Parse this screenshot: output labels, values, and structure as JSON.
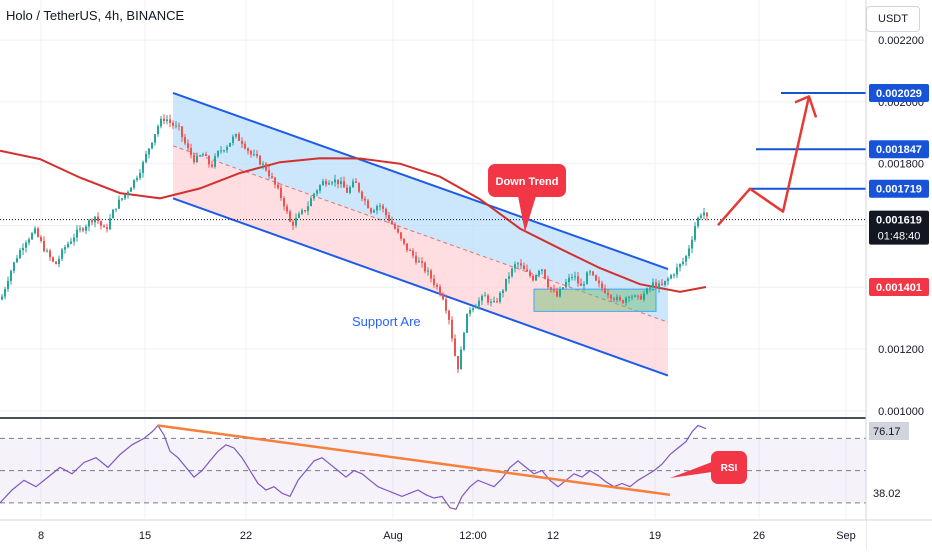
{
  "header": {
    "symbol": "Holo / TetherUS, 4h, BINANCE",
    "currency_button": "USDT"
  },
  "annotations": {
    "down_trend": "Down Trend",
    "support": "Support Are",
    "rsi": "RSI"
  },
  "colors": {
    "up_candle": "#26a69a",
    "down_candle": "#ef5350",
    "channel_line": "#1e5be6",
    "moving_average": "#d32f2f",
    "level_line": "#1753d6",
    "arrow": "#e53935",
    "rsi_line": "#7e57c2",
    "rsi_trend": "#f57f3b",
    "support_box": "#66bb6a",
    "channel_upper_fill": "#bbdefb",
    "channel_lower_fill": "#ffcdd2"
  },
  "chart_data": [
    {
      "type": "candlestick",
      "y_axis_ticks": [
        "0.002200",
        "0.002000",
        "0.001800",
        "0.001600",
        "0.001400",
        "0.001200",
        "0.001000"
      ],
      "ylim": [
        0.00098,
        0.00233
      ],
      "x_axis_ticks": [
        "8",
        "15",
        "22",
        "Aug",
        "12:00",
        "12",
        "19",
        "26",
        "Sep"
      ],
      "current_price": "0.001619",
      "countdown": "01:48:40",
      "price_labels": [
        {
          "value": "0.002029",
          "style": "blue"
        },
        {
          "value": "0.001847",
          "style": "blue"
        },
        {
          "value": "0.001719",
          "style": "blue"
        },
        {
          "value": "0.001401",
          "style": "red"
        }
      ],
      "price_path": [
        [
          0,
          0.00136
        ],
        [
          8,
          0.00144
        ],
        [
          16,
          0.0015
        ],
        [
          24,
          0.00155
        ],
        [
          34,
          0.00158
        ],
        [
          44,
          0.00152
        ],
        [
          54,
          0.00147
        ],
        [
          64,
          0.00153
        ],
        [
          74,
          0.00157
        ],
        [
          84,
          0.0016
        ],
        [
          94,
          0.00163
        ],
        [
          104,
          0.00158
        ],
        [
          114,
          0.00166
        ],
        [
          124,
          0.0017
        ],
        [
          134,
          0.00175
        ],
        [
          142,
          0.0018
        ],
        [
          150,
          0.00187
        ],
        [
          158,
          0.00193
        ],
        [
          164,
          0.00195
        ],
        [
          170,
          0.00193
        ],
        [
          178,
          0.00191
        ],
        [
          186,
          0.00185
        ],
        [
          194,
          0.00181
        ],
        [
          202,
          0.00183
        ],
        [
          210,
          0.00179
        ],
        [
          218,
          0.00184
        ],
        [
          226,
          0.00186
        ],
        [
          234,
          0.00189
        ],
        [
          242,
          0.00187
        ],
        [
          250,
          0.00183
        ],
        [
          258,
          0.00181
        ],
        [
          266,
          0.00178
        ],
        [
          274,
          0.00173
        ],
        [
          282,
          0.00168
        ],
        [
          290,
          0.0016
        ],
        [
          298,
          0.00163
        ],
        [
          306,
          0.00166
        ],
        [
          314,
          0.00171
        ],
        [
          322,
          0.00174
        ],
        [
          330,
          0.00175
        ],
        [
          338,
          0.00174
        ],
        [
          346,
          0.00171
        ],
        [
          354,
          0.00174
        ],
        [
          362,
          0.00169
        ],
        [
          370,
          0.00165
        ],
        [
          378,
          0.00167
        ],
        [
          386,
          0.00163
        ],
        [
          394,
          0.00159
        ],
        [
          402,
          0.00154
        ],
        [
          410,
          0.00151
        ],
        [
          418,
          0.00148
        ],
        [
          426,
          0.00145
        ],
        [
          434,
          0.00141
        ],
        [
          442,
          0.00137
        ],
        [
          448,
          0.0013
        ],
        [
          454,
          0.00118
        ],
        [
          458,
          0.00113
        ],
        [
          462,
          0.00125
        ],
        [
          468,
          0.00133
        ],
        [
          476,
          0.00135
        ],
        [
          484,
          0.00137
        ],
        [
          492,
          0.00134
        ],
        [
          500,
          0.00138
        ],
        [
          508,
          0.00144
        ],
        [
          516,
          0.00148
        ],
        [
          524,
          0.00145
        ],
        [
          532,
          0.00143
        ],
        [
          540,
          0.00147
        ],
        [
          548,
          0.0014
        ],
        [
          556,
          0.00137
        ],
        [
          564,
          0.00141
        ],
        [
          572,
          0.00144
        ],
        [
          580,
          0.0014
        ],
        [
          588,
          0.00145
        ],
        [
          596,
          0.00141
        ],
        [
          604,
          0.00139
        ],
        [
          612,
          0.00137
        ],
        [
          620,
          0.00135
        ],
        [
          628,
          0.00138
        ],
        [
          636,
          0.00136
        ],
        [
          644,
          0.00138
        ],
        [
          652,
          0.00141
        ],
        [
          660,
          0.0014
        ],
        [
          668,
          0.00143
        ],
        [
          676,
          0.00146
        ],
        [
          684,
          0.00149
        ],
        [
          690,
          0.00155
        ],
        [
          694,
          0.0016
        ],
        [
          698,
          0.00163
        ],
        [
          702,
          0.00165
        ],
        [
          706,
          0.00162
        ]
      ],
      "moving_average": [
        [
          0,
          0.001842
        ],
        [
          40,
          0.001815
        ],
        [
          80,
          0.001755
        ],
        [
          120,
          0.001705
        ],
        [
          160,
          0.001688
        ],
        [
          200,
          0.00172
        ],
        [
          240,
          0.00177
        ],
        [
          280,
          0.001805
        ],
        [
          320,
          0.001818
        ],
        [
          360,
          0.001817
        ],
        [
          400,
          0.0018
        ],
        [
          440,
          0.001758
        ],
        [
          480,
          0.001685
        ],
        [
          520,
          0.00159
        ],
        [
          560,
          0.001525
        ],
        [
          600,
          0.001462
        ],
        [
          640,
          0.00141
        ],
        [
          680,
          0.001385
        ],
        [
          706,
          0.001401
        ]
      ],
      "channel": {
        "upper_start": [
          173,
          0.002029
        ],
        "upper_end": [
          668,
          0.001459
        ],
        "lower_start": [
          173,
          0.001688
        ],
        "lower_end": [
          668,
          0.001114
        ],
        "mid_start": [
          173,
          0.001858
        ],
        "mid_end": [
          668,
          0.001287
        ]
      },
      "support_zone": {
        "x1": 534,
        "x2": 656,
        "top": 0.001394,
        "bottom": 0.001322
      },
      "level_lines": [
        {
          "value": 0.002029,
          "x1": 781
        },
        {
          "value": 0.001847,
          "x1": 756
        },
        {
          "value": 0.001719,
          "x1": 750
        }
      ],
      "projection_path": [
        [
          718,
          0.001601
        ],
        [
          750,
          0.001719
        ],
        [
          783,
          0.001645
        ],
        [
          809,
          0.002018
        ]
      ]
    },
    {
      "type": "line",
      "name": "RSI",
      "ylim": [
        20,
        82
      ],
      "levels": [
        70,
        50,
        30
      ],
      "labels": [
        {
          "value": "76.17",
          "style": "grey"
        },
        {
          "value": "38.02",
          "style": "plain"
        }
      ],
      "rsi_values": [
        [
          0,
          30
        ],
        [
          12,
          38
        ],
        [
          24,
          44
        ],
        [
          36,
          40
        ],
        [
          48,
          46
        ],
        [
          60,
          52
        ],
        [
          72,
          48
        ],
        [
          84,
          55
        ],
        [
          96,
          58
        ],
        [
          108,
          52
        ],
        [
          120,
          60
        ],
        [
          132,
          66
        ],
        [
          144,
          70
        ],
        [
          152,
          74
        ],
        [
          158,
          78
        ],
        [
          164,
          72
        ],
        [
          170,
          62
        ],
        [
          178,
          58
        ],
        [
          186,
          52
        ],
        [
          194,
          46
        ],
        [
          202,
          50
        ],
        [
          210,
          56
        ],
        [
          218,
          62
        ],
        [
          226,
          66
        ],
        [
          234,
          64
        ],
        [
          242,
          58
        ],
        [
          250,
          50
        ],
        [
          258,
          42
        ],
        [
          266,
          38
        ],
        [
          274,
          40
        ],
        [
          282,
          36
        ],
        [
          290,
          34
        ],
        [
          298,
          44
        ],
        [
          306,
          50
        ],
        [
          314,
          56
        ],
        [
          322,
          58
        ],
        [
          330,
          54
        ],
        [
          338,
          50
        ],
        [
          346,
          46
        ],
        [
          354,
          50
        ],
        [
          362,
          48
        ],
        [
          370,
          44
        ],
        [
          378,
          40
        ],
        [
          386,
          38
        ],
        [
          394,
          36
        ],
        [
          402,
          34
        ],
        [
          410,
          36
        ],
        [
          418,
          38
        ],
        [
          426,
          35
        ],
        [
          434,
          33
        ],
        [
          442,
          34
        ],
        [
          450,
          27
        ],
        [
          456,
          26
        ],
        [
          462,
          34
        ],
        [
          470,
          40
        ],
        [
          478,
          44
        ],
        [
          486,
          42
        ],
        [
          494,
          40
        ],
        [
          502,
          45
        ],
        [
          510,
          52
        ],
        [
          518,
          56
        ],
        [
          526,
          52
        ],
        [
          534,
          48
        ],
        [
          542,
          50
        ],
        [
          550,
          44
        ],
        [
          558,
          40
        ],
        [
          566,
          44
        ],
        [
          574,
          48
        ],
        [
          582,
          46
        ],
        [
          590,
          50
        ],
        [
          598,
          47
        ],
        [
          606,
          43
        ],
        [
          614,
          40
        ],
        [
          622,
          42
        ],
        [
          630,
          40
        ],
        [
          638,
          44
        ],
        [
          646,
          47
        ],
        [
          654,
          50
        ],
        [
          662,
          54
        ],
        [
          670,
          60
        ],
        [
          678,
          64
        ],
        [
          686,
          68
        ],
        [
          692,
          74
        ],
        [
          698,
          78
        ],
        [
          702,
          77
        ],
        [
          706,
          76
        ]
      ],
      "trendline": [
        [
          158,
          78
        ],
        [
          670,
          35
        ]
      ]
    }
  ]
}
